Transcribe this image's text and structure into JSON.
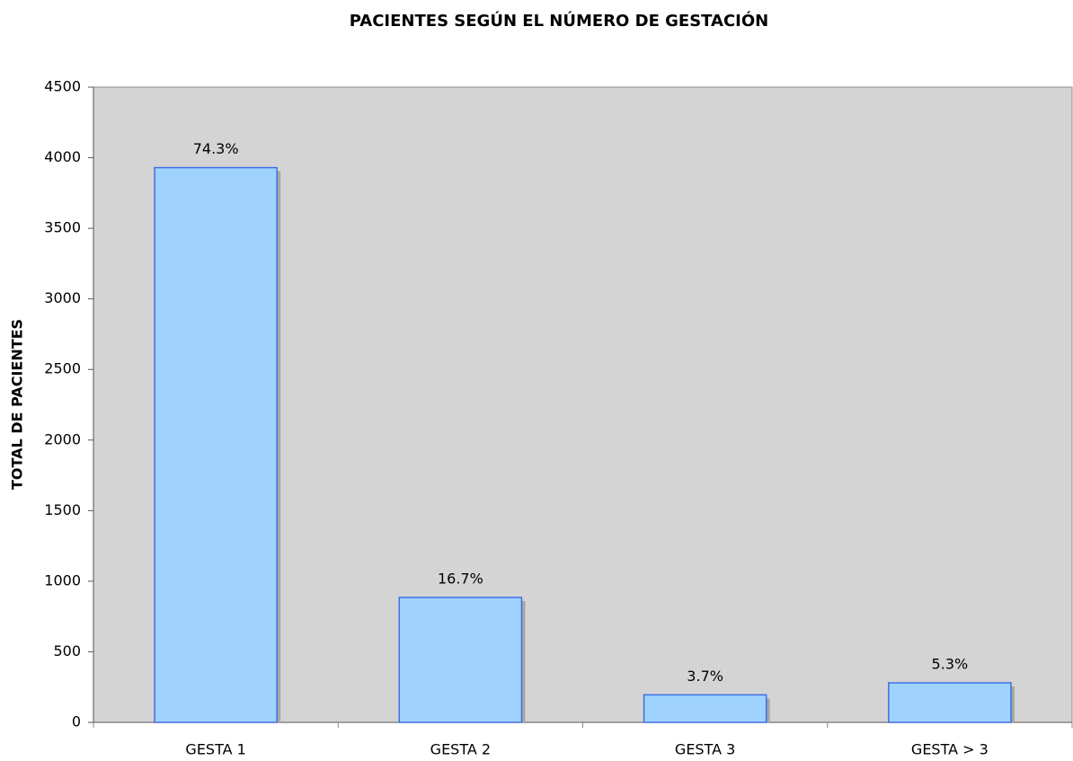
{
  "chart_data": {
    "type": "bar",
    "title": "PACIENTES SEGÚN EL NÚMERO DE GESTACIÓN",
    "y_label": "TOTAL DE PACIENTES",
    "categories": [
      "GESTA 1",
      "GESTA 2",
      "GESTA 3",
      "GESTA > 3"
    ],
    "values": [
      3930,
      885,
      195,
      280
    ],
    "percent_labels": [
      "74.3%",
      "16.7%",
      "3.7%",
      "5.3%"
    ],
    "color": "#9fd3fd",
    "edge_color": "#3f6fe0",
    "plot_background": "#d4d4d4",
    "ylim": [
      0,
      4500
    ],
    "yticks": [
      0,
      500,
      1000,
      1500,
      2000,
      2500,
      3000,
      3500,
      4000,
      4500
    ],
    "grid": false
  }
}
